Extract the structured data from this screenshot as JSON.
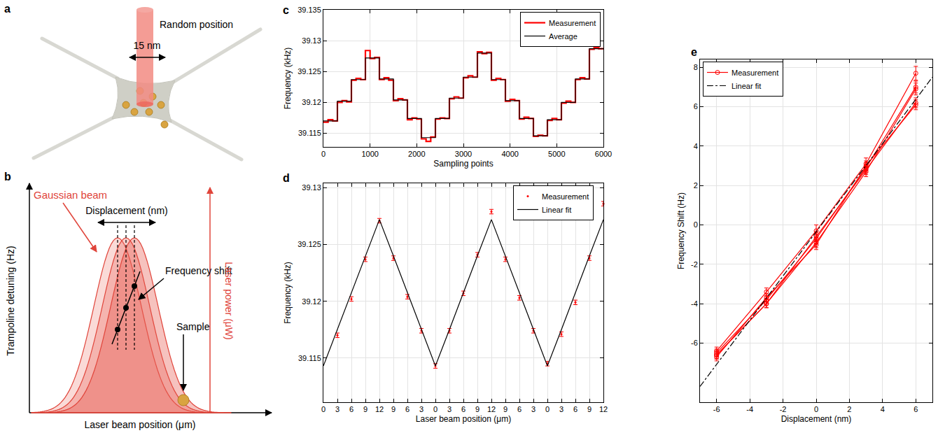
{
  "diagrams": {
    "panel_letters": [
      "a",
      "b",
      "c",
      "d",
      "e"
    ],
    "a": {
      "beam_label": "Random position",
      "step_label": "15 nm"
    },
    "b": {
      "left_axis": "Trampoline detuning (Hz)",
      "right_axis": "Laser power (μW)",
      "x_axis": "Laser beam position (μm)",
      "beam": "Gaussian beam",
      "displacement": "Displacement (nm)",
      "shift": "Frequency shift",
      "sample": "Sample"
    }
  },
  "chart_data": [
    {
      "type": "line",
      "x_label": "Sampling points",
      "y_label": "Frequency (kHz)",
      "xlim": [
        0,
        6000
      ],
      "xticks": [
        0,
        1000,
        2000,
        3000,
        4000,
        5000,
        6000
      ],
      "ylim": [
        39.1128,
        39.135
      ],
      "yticks": [
        39.115,
        39.12,
        39.125,
        39.13,
        39.135
      ],
      "grid": true,
      "legend": "upper right",
      "series": [
        {
          "name": "Measurement",
          "color": "#ff0000",
          "line_style": "step",
          "x": [
            0,
            100,
            200,
            300,
            400,
            500,
            600,
            700,
            800,
            900,
            1000,
            1100,
            1200,
            1300,
            1400,
            1500,
            1600,
            1700,
            1800,
            1900,
            2000,
            2100,
            2200,
            2300,
            2400,
            2500,
            2600,
            2700,
            2800,
            2900,
            3000,
            3100,
            3200,
            3300,
            3400,
            3500,
            3600,
            3700,
            3800,
            3900,
            4000,
            4100,
            4200,
            4300,
            4400,
            4500,
            4600,
            4700,
            4800,
            4900,
            5000,
            5100,
            5200,
            5300,
            5400,
            5500,
            5600,
            5700,
            5800,
            5900,
            6000
          ],
          "values": [
            39.1168,
            39.1172,
            39.117,
            39.12,
            39.1203,
            39.1201,
            39.1236,
            39.1239,
            39.1237,
            39.1284,
            39.1271,
            39.1273,
            39.1237,
            39.124,
            39.1236,
            39.1203,
            39.1206,
            39.1204,
            39.1172,
            39.1175,
            39.1173,
            39.1141,
            39.1137,
            39.1144,
            39.1173,
            39.1175,
            39.1174,
            39.1206,
            39.1209,
            39.1207,
            39.124,
            39.1243,
            39.1241,
            39.1282,
            39.1279,
            39.1281,
            39.1236,
            39.1239,
            39.1237,
            39.1202,
            39.1205,
            39.1203,
            39.1173,
            39.1176,
            39.1174,
            39.1145,
            39.1147,
            39.1146,
            39.1171,
            39.1174,
            39.1172,
            39.1199,
            39.1202,
            39.12,
            39.1237,
            39.124,
            39.1238,
            39.1286,
            39.1289,
            39.1287,
            39.1288
          ]
        },
        {
          "name": "Average",
          "color": "#000000",
          "line_style": "step",
          "x": [
            0,
            300,
            600,
            900,
            1200,
            1500,
            1800,
            2100,
            2400,
            2700,
            3000,
            3300,
            3600,
            3900,
            4200,
            4500,
            4800,
            5100,
            5400,
            5700,
            6000
          ],
          "values": [
            39.117,
            39.1202,
            39.1237,
            39.1272,
            39.1238,
            39.1204,
            39.1174,
            39.1143,
            39.1174,
            39.1207,
            39.1241,
            39.128,
            39.1237,
            39.1203,
            39.1174,
            39.1146,
            39.1172,
            39.12,
            39.1238,
            39.1287,
            39.1287
          ]
        }
      ]
    },
    {
      "type": "scatter",
      "x_label": "Laser beam position (μm)",
      "y_label": "Frequency (kHz)",
      "categories": [
        0,
        3,
        6,
        9,
        12,
        9,
        6,
        3,
        0,
        3,
        6,
        9,
        12,
        9,
        6,
        3,
        0,
        3,
        6,
        9,
        12
      ],
      "ylim": [
        39.1111,
        39.1304
      ],
      "yticks": [
        39.115,
        39.12,
        39.125,
        39.13
      ],
      "grid": true,
      "legend": "upper right",
      "series": [
        {
          "name": "Measurement",
          "color": "#ff0000",
          "type": "scatter",
          "marker": "dot",
          "values": [
            null,
            39.117,
            39.1202,
            39.1237,
            39.1271,
            39.1238,
            39.1204,
            39.1174,
            39.1143,
            39.1174,
            39.1207,
            39.1241,
            39.1279,
            39.1237,
            39.1203,
            39.1174,
            39.1145,
            39.1171,
            39.1199,
            39.1238,
            39.1286
          ],
          "errors": [
            null,
            0.0002,
            0.0002,
            0.0002,
            0.0002,
            0.0002,
            0.0002,
            0.0002,
            0.0002,
            0.0002,
            0.0002,
            0.0002,
            0.0002,
            0.0002,
            0.0002,
            0.0002,
            0.0002,
            0.0002,
            0.0002,
            0.0002,
            0.0002
          ]
        },
        {
          "name": "Linear fit",
          "color": "#000000",
          "type": "line",
          "line_style": "solid",
          "values": [
            39.1143,
            39.1175,
            39.1208,
            39.124,
            39.1272,
            39.124,
            39.1208,
            39.1175,
            39.1143,
            39.1175,
            39.1208,
            39.124,
            39.1272,
            39.124,
            39.1208,
            39.1175,
            39.1143,
            39.1175,
            39.1208,
            39.124,
            39.1272
          ]
        }
      ]
    },
    {
      "type": "line",
      "x_label": "Displacement (nm)",
      "y_label": "Frequency Shift (Hz)",
      "xlim": [
        -7,
        7
      ],
      "xticks": [
        -6,
        -4,
        -2,
        0,
        2,
        4,
        6
      ],
      "ylim": [
        -9,
        8.4
      ],
      "yticks": [
        -6,
        -4,
        -2,
        0,
        2,
        4,
        6,
        8
      ],
      "grid": true,
      "legend": "upper left",
      "series": [
        {
          "name": "Measurement",
          "color": "#ff0000",
          "type": "line",
          "marker": "circle-open",
          "line_style": "solid",
          "x": [
            -6,
            -3,
            0,
            3,
            6
          ],
          "values": [
            -6.4,
            -3.4,
            -0.3,
            3.1,
            7.7
          ],
          "errors": [
            0.2,
            0.2,
            0.3,
            0.3,
            0.35
          ]
        },
        {
          "name": "Measurement",
          "color": "#ff0000",
          "type": "line",
          "marker": "circle-open",
          "line_style": "solid",
          "x": [
            -6,
            -3,
            0,
            3,
            6
          ],
          "values": [
            -6.5,
            -3.8,
            -0.7,
            2.9,
            7.0
          ],
          "errors": [
            0.2,
            0.2,
            0.25,
            0.25,
            0.3
          ]
        },
        {
          "name": "Measurement",
          "color": "#ff0000",
          "type": "line",
          "marker": "circle-open",
          "line_style": "solid",
          "x": [
            -6,
            -3,
            0,
            3,
            6
          ],
          "values": [
            -6.6,
            -4.0,
            -0.9,
            2.7,
            6.9
          ],
          "errors": [
            0.2,
            0.2,
            0.25,
            0.25,
            0.3
          ]
        },
        {
          "name": "Measurement",
          "color": "#ff0000",
          "type": "line",
          "marker": "circle-open",
          "line_style": "solid",
          "x": [
            -6,
            -3,
            0,
            3,
            6
          ],
          "values": [
            -6.7,
            -3.7,
            -1.0,
            3.0,
            6.1
          ],
          "errors": [
            0.2,
            0.2,
            0.25,
            0.25,
            0.25
          ]
        },
        {
          "name": "Measurement",
          "color": "#ff0000",
          "type": "line",
          "marker": "circle-open",
          "line_style": "solid",
          "x": [
            -6,
            -3,
            0,
            3,
            6
          ],
          "values": [
            -6.6,
            -4.0,
            -0.6,
            2.8,
            6.2
          ],
          "errors": [
            0.2,
            0.2,
            0.25,
            0.25,
            0.25
          ]
        },
        {
          "name": "Linear fit",
          "color": "#000000",
          "type": "line",
          "line_style": "dashdot",
          "x": [
            -7,
            7
          ],
          "values": [
            -8.2,
            7.5
          ]
        }
      ]
    }
  ]
}
